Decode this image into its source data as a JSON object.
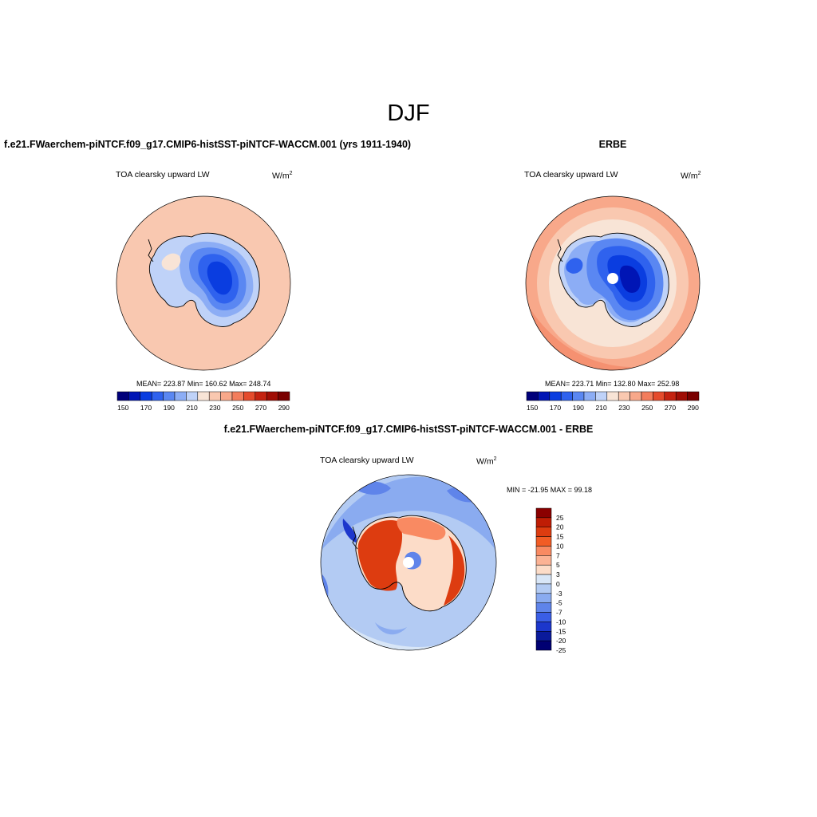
{
  "figure": {
    "title": "DJF",
    "panels": [
      {
        "case": "f.e21.FWaerchem-piNTCF.f09_g17.CMIP6-histSST-piNTCF-WACCM.001 (yrs 1911-1940)",
        "variable": "TOA clearsky upward LW",
        "units": "W/m",
        "units_exp": "2",
        "stats": "MEAN= 223.87  Min= 160.62  Max= 248.74",
        "colorbar_ticks": [
          "150",
          "170",
          "190",
          "210",
          "230",
          "250",
          "270",
          "290"
        ]
      },
      {
        "case": "ERBE",
        "variable": "TOA clearsky upward LW",
        "units": "W/m",
        "units_exp": "2",
        "stats": "MEAN= 223.71  Min= 132.80  Max= 252.98",
        "colorbar_ticks": [
          "150",
          "170",
          "190",
          "210",
          "230",
          "250",
          "270",
          "290"
        ]
      },
      {
        "case": "f.e21.FWaerchem-piNTCF.f09_g17.CMIP6-histSST-piNTCF-WACCM.001 - ERBE",
        "variable": "TOA clearsky upward LW",
        "units": "W/m",
        "units_exp": "2",
        "stats": "MIN = -21.95 MAX =  99.18",
        "colorbar_ticks": [
          "25",
          "20",
          "15",
          "10",
          "7",
          "5",
          "3",
          "0",
          "-3",
          "-5",
          "-7",
          "-10",
          "-15",
          "-20",
          "-25"
        ]
      }
    ]
  },
  "colors": {
    "abs_scale": [
      "#00007a",
      "#0015b5",
      "#0a3de0",
      "#2f62ee",
      "#5a87f2",
      "#8cadf5",
      "#bfd2f8",
      "#f8e4d6",
      "#f9c8b0",
      "#f8a88a",
      "#f37d5c",
      "#e54b2c",
      "#c42210",
      "#a00d05",
      "#7a0000"
    ],
    "diff_scale": [
      "#8b0000",
      "#bf1d05",
      "#dd3c10",
      "#f25c25",
      "#f98a62",
      "#fbb294",
      "#fcdcc8",
      "#d8e6f7",
      "#b3cbf3",
      "#8aabf0",
      "#5f84ea",
      "#3a5ee6",
      "#1c37cc",
      "#0a1a9b",
      "#000072"
    ]
  }
}
